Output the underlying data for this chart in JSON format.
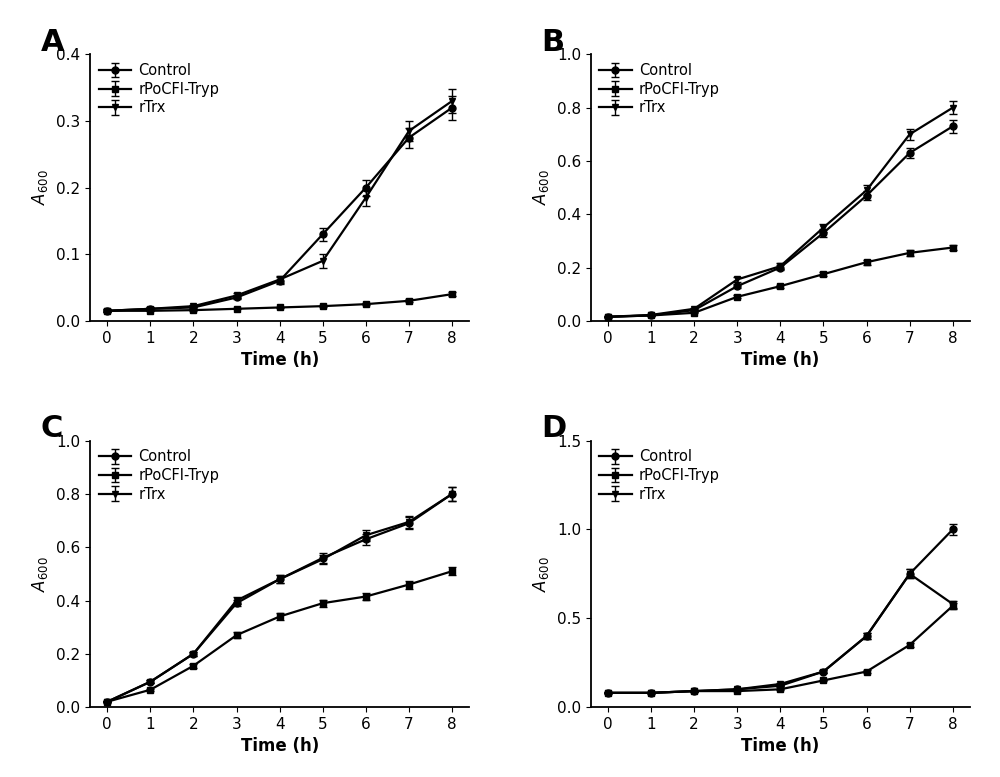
{
  "time": [
    0,
    1,
    2,
    3,
    4,
    5,
    6,
    7,
    8
  ],
  "panels": {
    "A": {
      "label": "A",
      "ylim": [
        0,
        0.4
      ],
      "yticks": [
        0.0,
        0.1,
        0.2,
        0.3,
        0.4
      ],
      "control": [
        0.015,
        0.018,
        0.02,
        0.035,
        0.06,
        0.13,
        0.2,
        0.275,
        0.32
      ],
      "control_err": [
        0.002,
        0.002,
        0.002,
        0.003,
        0.005,
        0.01,
        0.012,
        0.015,
        0.018
      ],
      "rPoCFI": [
        0.015,
        0.015,
        0.016,
        0.018,
        0.02,
        0.022,
        0.025,
        0.03,
        0.04
      ],
      "rPoCFI_err": [
        0.001,
        0.001,
        0.001,
        0.001,
        0.001,
        0.001,
        0.002,
        0.002,
        0.003
      ],
      "rTrx": [
        0.015,
        0.018,
        0.022,
        0.038,
        0.062,
        0.09,
        0.185,
        0.285,
        0.33
      ],
      "rTrx_err": [
        0.002,
        0.002,
        0.002,
        0.004,
        0.006,
        0.01,
        0.012,
        0.015,
        0.018
      ]
    },
    "B": {
      "label": "B",
      "ylim": [
        0,
        1.0
      ],
      "yticks": [
        0.0,
        0.2,
        0.4,
        0.6,
        0.8,
        1.0
      ],
      "control": [
        0.015,
        0.02,
        0.04,
        0.13,
        0.2,
        0.33,
        0.47,
        0.63,
        0.73
      ],
      "control_err": [
        0.002,
        0.002,
        0.003,
        0.008,
        0.01,
        0.015,
        0.018,
        0.02,
        0.025
      ],
      "rPoCFI": [
        0.015,
        0.02,
        0.03,
        0.09,
        0.13,
        0.175,
        0.22,
        0.255,
        0.275
      ],
      "rPoCFI_err": [
        0.001,
        0.001,
        0.002,
        0.005,
        0.006,
        0.008,
        0.009,
        0.01,
        0.01
      ],
      "rTrx": [
        0.015,
        0.022,
        0.045,
        0.155,
        0.205,
        0.35,
        0.49,
        0.7,
        0.8
      ],
      "rTrx_err": [
        0.002,
        0.002,
        0.003,
        0.009,
        0.012,
        0.015,
        0.018,
        0.02,
        0.025
      ]
    },
    "C": {
      "label": "C",
      "ylim": [
        0,
        1.0
      ],
      "yticks": [
        0.0,
        0.2,
        0.4,
        0.6,
        0.8,
        1.0
      ],
      "control": [
        0.02,
        0.095,
        0.2,
        0.39,
        0.48,
        0.56,
        0.63,
        0.69,
        0.8
      ],
      "control_err": [
        0.002,
        0.005,
        0.008,
        0.012,
        0.015,
        0.018,
        0.02,
        0.022,
        0.025
      ],
      "rPoCFI": [
        0.02,
        0.065,
        0.155,
        0.27,
        0.34,
        0.39,
        0.415,
        0.46,
        0.51
      ],
      "rPoCFI_err": [
        0.002,
        0.004,
        0.007,
        0.01,
        0.012,
        0.013,
        0.014,
        0.015,
        0.016
      ],
      "rTrx": [
        0.02,
        0.095,
        0.2,
        0.4,
        0.48,
        0.555,
        0.645,
        0.695,
        0.8
      ],
      "rTrx_err": [
        0.002,
        0.005,
        0.008,
        0.012,
        0.015,
        0.017,
        0.02,
        0.022,
        0.025
      ]
    },
    "D": {
      "label": "D",
      "ylim": [
        0,
        1.5
      ],
      "yticks": [
        0.0,
        0.5,
        1.0,
        1.5
      ],
      "control": [
        0.08,
        0.08,
        0.09,
        0.1,
        0.12,
        0.2,
        0.4,
        0.75,
        1.0
      ],
      "control_err": [
        0.003,
        0.003,
        0.003,
        0.004,
        0.004,
        0.006,
        0.015,
        0.025,
        0.03
      ],
      "rPoCFI": [
        0.08,
        0.08,
        0.09,
        0.09,
        0.1,
        0.15,
        0.2,
        0.35,
        0.57
      ],
      "rPoCFI_err": [
        0.002,
        0.002,
        0.002,
        0.002,
        0.003,
        0.005,
        0.007,
        0.012,
        0.018
      ],
      "rTrx": [
        0.08,
        0.08,
        0.09,
        0.1,
        0.13,
        0.2,
        0.4,
        0.75,
        0.58
      ],
      "rTrx_err": [
        0.003,
        0.003,
        0.003,
        0.003,
        0.004,
        0.006,
        0.015,
        0.025,
        0.02
      ]
    }
  },
  "legend_labels": [
    "Control",
    "rPoCFI-Tryp",
    "rTrx"
  ],
  "xlabel": "Time (h)",
  "ylabel": "A_600",
  "line_color": "#000000",
  "marker_control": "o",
  "marker_rPoCFI": "s",
  "marker_rTrx": "v",
  "markersize": 5,
  "linewidth": 1.6,
  "capsize": 3,
  "elinewidth": 1.0,
  "background_color": "#ffffff",
  "panel_label_fontsize": 22,
  "axis_label_fontsize": 12,
  "tick_label_fontsize": 11,
  "legend_fontsize": 10.5
}
